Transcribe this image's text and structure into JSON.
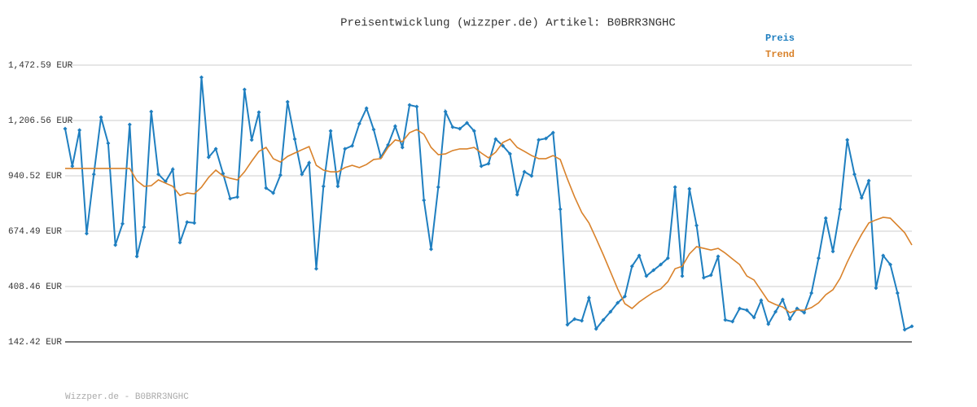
{
  "chart_data": {
    "type": "line",
    "title": "Preisentwicklung (wizzper.de) Artikel: B0BRR3NGHC",
    "footer": "Wizzper.de - B0BRR3NGHC",
    "ylim": [
      142.42,
      1472.59
    ],
    "yticks": [
      {
        "value": 142.42,
        "label": "142.42 EUR"
      },
      {
        "value": 408.46,
        "label": "408.46 EUR"
      },
      {
        "value": 674.49,
        "label": "674.49 EUR"
      },
      {
        "value": 940.52,
        "label": "940.52 EUR"
      },
      {
        "value": 1206.56,
        "label": "1,206.56 EUR"
      },
      {
        "value": 1472.59,
        "label": "1,472.59 EUR"
      }
    ],
    "grid": true,
    "legend": "top-right",
    "series": [
      {
        "name": "Preis",
        "color": "#1f7fc0",
        "markers": true,
        "values": [
          1167,
          987,
          1160,
          663,
          948,
          1222,
          1097,
          608,
          710,
          1187,
          553,
          694,
          1249,
          948,
          913,
          972,
          620,
          718,
          714,
          1414,
          1030,
          1070,
          952,
          831,
          839,
          1355,
          1113,
          1246,
          882,
          858,
          944,
          1296,
          1117,
          948,
          1003,
          494,
          890,
          1156,
          890,
          1070,
          1085,
          1191,
          1265,
          1163,
          1030,
          1089,
          1179,
          1077,
          1281,
          1273,
          823,
          588,
          886,
          1249,
          1175,
          1167,
          1195,
          1156,
          987,
          999,
          1117,
          1085,
          1046,
          850,
          960,
          940,
          1113,
          1120,
          1148,
          780,
          225,
          252,
          244,
          354,
          205,
          248,
          287,
          330,
          361,
          506,
          557,
          459,
          487,
          514,
          545,
          886,
          459,
          878,
          702,
          451,
          463,
          553,
          248,
          240,
          303,
          295,
          260,
          342,
          228,
          287,
          346,
          252,
          303,
          283,
          377,
          545,
          737,
          577,
          780,
          1113,
          948,
          835,
          917,
          401,
          557,
          514,
          377,
          201,
          217
        ]
      },
      {
        "name": "Trend",
        "color": "#d9822b",
        "markers": false,
        "values": [
          976,
          976,
          976,
          976,
          976,
          976,
          976,
          976,
          976,
          976,
          917,
          890,
          893,
          921,
          905,
          890,
          846,
          858,
          854,
          886,
          933,
          968,
          940,
          929,
          921,
          960,
          1011,
          1058,
          1077,
          1023,
          1007,
          1034,
          1050,
          1066,
          1081,
          991,
          968,
          960,
          960,
          980,
          991,
          980,
          995,
          1019,
          1023,
          1077,
          1113,
          1105,
          1148,
          1163,
          1140,
          1077,
          1042,
          1046,
          1062,
          1070,
          1070,
          1077,
          1050,
          1027,
          1054,
          1101,
          1117,
          1077,
          1058,
          1038,
          1023,
          1023,
          1038,
          1019,
          925,
          839,
          764,
          714,
          639,
          561,
          479,
          397,
          326,
          303,
          334,
          358,
          381,
          397,
          432,
          494,
          506,
          565,
          600,
          592,
          584,
          592,
          569,
          541,
          514,
          459,
          440,
          389,
          338,
          322,
          310,
          283,
          295,
          295,
          307,
          330,
          369,
          393,
          448,
          526,
          596,
          659,
          714,
          729,
          741,
          737,
          702,
          667,
          608
        ]
      }
    ]
  }
}
